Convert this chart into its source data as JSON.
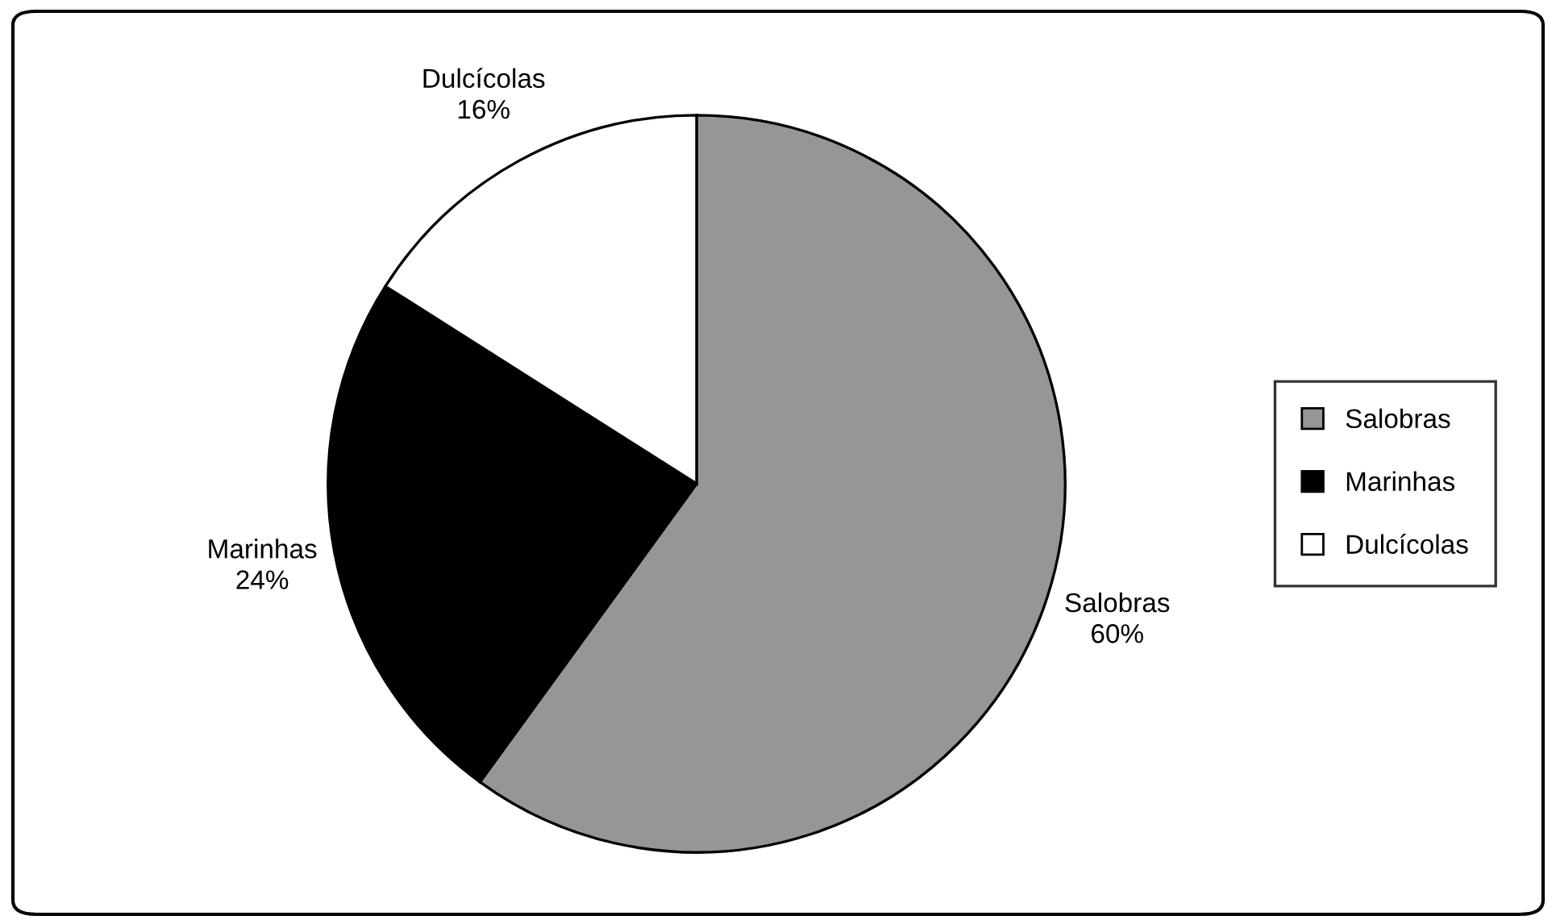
{
  "chart_data": {
    "type": "pie",
    "categories": [
      "Salobras",
      "Marinhas",
      "Dulcícolas"
    ],
    "values": [
      60,
      24,
      16
    ],
    "value_labels": [
      "60%",
      "24%",
      "16%"
    ],
    "colors": [
      "#969696",
      "#000000",
      "#ffffff"
    ],
    "legend": "right"
  }
}
